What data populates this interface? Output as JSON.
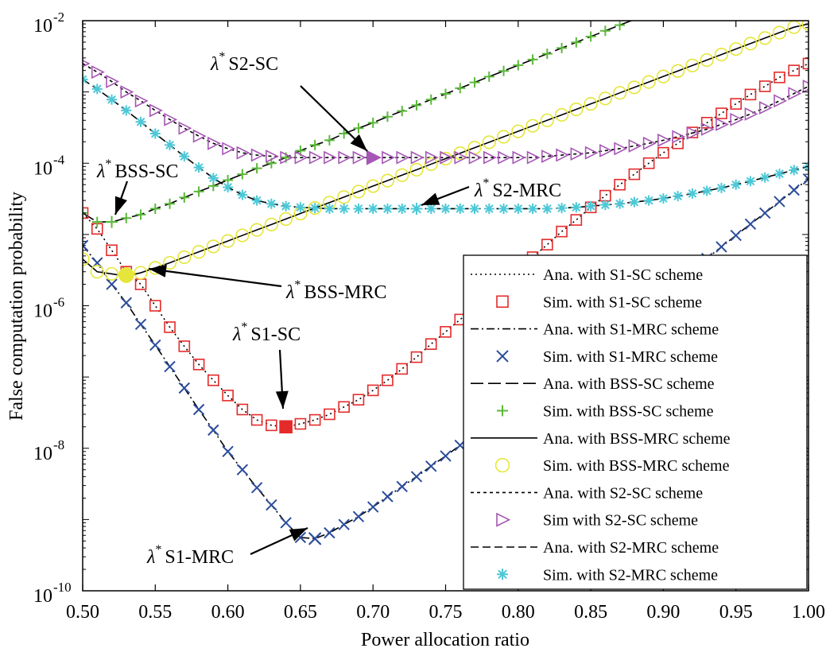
{
  "chart_data": {
    "type": "line",
    "xlabel": "Power allocation ratio",
    "ylabel": "False computation probability",
    "xlim": [
      0.5,
      1.0
    ],
    "ylim": [
      1e-10,
      0.01
    ],
    "y_scale": "log",
    "x_ticks": [
      "0.50",
      "0.55",
      "0.60",
      "0.65",
      "0.70",
      "0.75",
      "0.80",
      "0.85",
      "0.90",
      "0.95",
      "1.00"
    ],
    "y_ticks": [
      {
        "base": "10",
        "exp": "-10",
        "value": 1e-10
      },
      {
        "base": "10",
        "exp": "-8",
        "value": 1e-08
      },
      {
        "base": "10",
        "exp": "-6",
        "value": 1e-06
      },
      {
        "base": "10",
        "exp": "-4",
        "value": 0.0001
      },
      {
        "base": "10",
        "exp": "-2",
        "value": 0.01
      }
    ],
    "legend_position": "bottom-right",
    "x": [
      0.5,
      0.51,
      0.52,
      0.53,
      0.54,
      0.55,
      0.56,
      0.57,
      0.58,
      0.59,
      0.6,
      0.61,
      0.62,
      0.63,
      0.64,
      0.65,
      0.66,
      0.67,
      0.68,
      0.69,
      0.7,
      0.71,
      0.72,
      0.73,
      0.74,
      0.75,
      0.76,
      0.77,
      0.78,
      0.79,
      0.8,
      0.81,
      0.82,
      0.83,
      0.84,
      0.85,
      0.86,
      0.87,
      0.88,
      0.89,
      0.9,
      0.91,
      0.92,
      0.93,
      0.94,
      0.95,
      0.96,
      0.97,
      0.98,
      0.99,
      1.0
    ],
    "series": [
      {
        "name": "Ana. with S1-SC scheme",
        "values": [
          2e-05,
          1.2e-05,
          6e-06,
          3e-06,
          2e-06,
          1e-06,
          5e-07,
          2.7e-07,
          1.5e-07,
          9e-08,
          5.5e-08,
          3.5e-08,
          2.5e-08,
          2.1e-08,
          2e-08,
          2.2e-08,
          2.5e-08,
          3e-08,
          3.8e-08,
          4.8e-08,
          6.5e-08,
          9e-08,
          1.3e-07,
          1.9e-07,
          2.9e-07,
          4.3e-07,
          6.4e-07,
          9.5e-07,
          1.4e-06,
          2.1e-06,
          3.2e-06,
          4.8e-06,
          7.2e-06,
          1.1e-05,
          1.6e-05,
          2.4e-05,
          3.5e-05,
          5e-05,
          7e-05,
          0.0001,
          0.00014,
          0.00019,
          0.00027,
          0.00037,
          0.0005,
          0.00068,
          0.00092,
          0.0012,
          0.0016,
          0.002,
          0.0025
        ]
      },
      {
        "name": "Sim. with S1-SC scheme",
        "values": [
          2e-05,
          1.2e-05,
          6e-06,
          3e-06,
          2e-06,
          1e-06,
          5e-07,
          2.7e-07,
          1.5e-07,
          9e-08,
          5.5e-08,
          3.5e-08,
          2.5e-08,
          2.1e-08,
          2e-08,
          2.2e-08,
          2.5e-08,
          3e-08,
          3.8e-08,
          4.8e-08,
          6.5e-08,
          9e-08,
          1.3e-07,
          1.9e-07,
          2.9e-07,
          4.3e-07,
          6.4e-07,
          9.5e-07,
          1.4e-06,
          2.1e-06,
          3.2e-06,
          4.8e-06,
          7.2e-06,
          1.1e-05,
          1.6e-05,
          2.4e-05,
          3.5e-05,
          5e-05,
          7e-05,
          0.0001,
          0.00014,
          0.00019,
          0.00027,
          0.00037,
          0.0005,
          0.00068,
          0.00092,
          0.0012,
          0.0016,
          0.002,
          0.0025
        ]
      },
      {
        "name": "Ana. with S1-MRC scheme",
        "values": [
          7e-06,
          4e-06,
          2e-06,
          1.1e-06,
          5.5e-07,
          2.8e-07,
          1.4e-07,
          7e-08,
          3.5e-08,
          1.8e-08,
          9e-09,
          5e-09,
          2.8e-09,
          1.6e-09,
          9e-10,
          5.6e-10,
          5.4e-10,
          6.5e-10,
          8.5e-10,
          1.1e-09,
          1.5e-09,
          2.1e-09,
          2.9e-09,
          4e-09,
          5.6e-09,
          7.8e-09,
          1.1e-08,
          1.5e-08,
          2.1e-08,
          3e-08,
          4.2e-08,
          6e-08,
          8.5e-08,
          1.2e-07,
          1.7e-07,
          2.4e-07,
          3.5e-07,
          5e-07,
          7.1e-07,
          1e-06,
          1.5e-06,
          2.2e-06,
          3.2e-06,
          4.6e-06,
          6.7e-06,
          9.7e-06,
          1.4e-05,
          2e-05,
          2.9e-05,
          4.2e-05,
          6e-05
        ]
      },
      {
        "name": "Sim. with S1-MRC scheme",
        "values": [
          7e-06,
          4e-06,
          2e-06,
          1.1e-06,
          5.5e-07,
          2.8e-07,
          1.4e-07,
          7e-08,
          3.5e-08,
          1.8e-08,
          9e-09,
          5e-09,
          2.8e-09,
          1.6e-09,
          9e-10,
          5.6e-10,
          5.4e-10,
          6.5e-10,
          8.5e-10,
          1.1e-09,
          1.5e-09,
          2.1e-09,
          2.9e-09,
          4e-09,
          5.6e-09,
          7.8e-09,
          1.1e-08,
          1.5e-08,
          2.1e-08,
          3e-08,
          4.2e-08,
          6e-08,
          8.5e-08,
          1.2e-07,
          1.7e-07,
          2.4e-07,
          3.5e-07,
          5e-07,
          7.1e-07,
          1e-06,
          1.5e-06,
          2.2e-06,
          3.2e-06,
          4.6e-06,
          6.7e-06,
          9.7e-06,
          1.4e-05,
          2e-05,
          2.9e-05,
          4.2e-05,
          6e-05
        ]
      },
      {
        "name": "Ana. with BSS-SC scheme",
        "values": [
          2e-05,
          1.5e-05,
          1.5e-05,
          1.7e-05,
          1.9e-05,
          2.3e-05,
          2.7e-05,
          3.3e-05,
          4e-05,
          4.8e-05,
          5.8e-05,
          7e-05,
          8.5e-05,
          0.0001,
          0.00012,
          0.00015,
          0.00018,
          0.00021,
          0.00026,
          0.00031,
          0.00037,
          0.00045,
          0.00054,
          0.00065,
          0.00078,
          0.00094,
          0.00113,
          0.00136,
          0.00164,
          0.00197,
          0.00237,
          0.00285,
          0.00343,
          0.00413,
          0.00497,
          0.00598,
          0.0072,
          0.00866,
          0.0104,
          null,
          null,
          null,
          null,
          null,
          null,
          null,
          null,
          null,
          null,
          null,
          null
        ]
      },
      {
        "name": "Sim. with BSS-SC scheme",
        "values": [
          2e-05,
          1.5e-05,
          1.5e-05,
          1.7e-05,
          1.9e-05,
          2.3e-05,
          2.7e-05,
          3.3e-05,
          4e-05,
          4.8e-05,
          5.8e-05,
          7e-05,
          8.5e-05,
          0.0001,
          0.00012,
          0.00015,
          0.00018,
          0.00021,
          0.00026,
          0.00031,
          0.00037,
          0.00045,
          0.00054,
          0.00065,
          0.00078,
          0.00094,
          0.00113,
          0.00136,
          0.00164,
          0.00197,
          0.00237,
          0.00285,
          0.00343,
          0.00413,
          0.00497,
          0.00598,
          0.0072,
          0.00866,
          null,
          null,
          null,
          null,
          null,
          null,
          null,
          null,
          null,
          null,
          null,
          null,
          null
        ]
      },
      {
        "name": "Ana. with BSS-MRC scheme",
        "values": [
          4.5e-06,
          3e-06,
          2.8e-06,
          2.6e-06,
          2.9e-06,
          3.4e-06,
          4e-06,
          4.8e-06,
          5.7e-06,
          6.8e-06,
          8.1e-06,
          9.7e-06,
          1.16e-05,
          1.38e-05,
          1.65e-05,
          1.97e-05,
          2.35e-05,
          2.8e-05,
          3.35e-05,
          4e-05,
          4.77e-05,
          5.7e-05,
          6.8e-05,
          8.1e-05,
          9.7e-05,
          0.000116,
          0.000138,
          0.000165,
          0.000197,
          0.000235,
          0.00028,
          0.000335,
          0.0004,
          0.000477,
          0.00057,
          0.00068,
          0.00081,
          0.00097,
          0.00116,
          0.00138,
          0.00165,
          0.00197,
          0.00235,
          0.0028,
          0.00335,
          0.004,
          0.00477,
          0.0057,
          0.0068,
          0.0081,
          0.009
        ]
      },
      {
        "name": "Sim. with BSS-MRC scheme",
        "values": [
          4.5e-06,
          3e-06,
          2.8e-06,
          2.6e-06,
          2.9e-06,
          3.4e-06,
          4e-06,
          4.8e-06,
          5.7e-06,
          6.8e-06,
          8.1e-06,
          9.7e-06,
          1.16e-05,
          1.38e-05,
          1.65e-05,
          1.97e-05,
          2.35e-05,
          2.8e-05,
          3.35e-05,
          4e-05,
          4.77e-05,
          5.7e-05,
          6.8e-05,
          8.1e-05,
          9.7e-05,
          0.000116,
          0.000138,
          0.000165,
          0.000197,
          0.000235,
          0.00028,
          0.000335,
          0.0004,
          0.000477,
          0.00057,
          0.00068,
          0.00081,
          0.00097,
          0.00116,
          0.00138,
          0.00165,
          0.00197,
          0.00235,
          0.0028,
          0.00335,
          0.004,
          0.00477,
          0.0057,
          0.0068,
          0.0081,
          0.009
        ]
      },
      {
        "name": "Ana. with S2-SC scheme",
        "values": [
          0.0025,
          0.0019,
          0.0014,
          0.001,
          0.00075,
          0.00055,
          0.00041,
          0.00031,
          0.00024,
          0.00019,
          0.00016,
          0.00014,
          0.00013,
          0.000125,
          0.00012,
          0.00012,
          0.00012,
          0.00012,
          0.00012,
          0.00012,
          0.00012,
          0.00012,
          0.00012,
          0.00012,
          0.00012,
          0.00012,
          0.00012,
          0.00012,
          0.00012,
          0.00012,
          0.00012,
          0.00012,
          0.000125,
          0.00013,
          0.000135,
          0.00014,
          0.00015,
          0.00016,
          0.000175,
          0.00019,
          0.00021,
          0.000235,
          0.000265,
          0.0003,
          0.00035,
          0.00041,
          0.00049,
          0.0006,
          0.00075,
          0.00095,
          0.0012
        ]
      },
      {
        "name": "Sim with S2-SC scheme",
        "values": [
          0.0025,
          0.0019,
          0.0014,
          0.001,
          0.00075,
          0.00055,
          0.00041,
          0.00031,
          0.00024,
          0.00019,
          0.00016,
          0.00014,
          0.00013,
          0.000125,
          0.00012,
          0.00012,
          0.00012,
          0.00012,
          0.00012,
          0.00012,
          0.00012,
          0.00012,
          0.00012,
          0.00012,
          0.00012,
          0.00012,
          0.00012,
          0.00012,
          0.00012,
          0.00012,
          0.00012,
          0.00012,
          0.000125,
          0.00013,
          0.000135,
          0.00014,
          0.00015,
          0.00016,
          0.000175,
          0.00019,
          0.00021,
          0.000235,
          0.000265,
          0.0003,
          0.00035,
          0.00041,
          0.00049,
          0.0006,
          0.00075,
          0.00095,
          0.0012
        ]
      },
      {
        "name": "Ana. with S2-MRC scheme",
        "values": [
          0.0015,
          0.0011,
          0.00078,
          0.00055,
          0.00038,
          0.00026,
          0.00018,
          0.000125,
          8.7e-05,
          6.2e-05,
          4.6e-05,
          3.6e-05,
          3e-05,
          2.7e-05,
          2.5e-05,
          2.4e-05,
          2.35e-05,
          2.3e-05,
          2.3e-05,
          2.3e-05,
          2.3e-05,
          2.3e-05,
          2.3e-05,
          2.3e-05,
          2.3e-05,
          2.3e-05,
          2.3e-05,
          2.3e-05,
          2.3e-05,
          2.3e-05,
          2.3e-05,
          2.3e-05,
          2.3e-05,
          2.35e-05,
          2.4e-05,
          2.5e-05,
          2.6e-05,
          2.7e-05,
          2.85e-05,
          3e-05,
          3.2e-05,
          3.45e-05,
          3.75e-05,
          4.1e-05,
          4.5e-05,
          5e-05,
          5.6e-05,
          6.3e-05,
          7.1e-05,
          8e-05,
          9e-05
        ]
      },
      {
        "name": "Sim. with S2-MRC scheme",
        "values": [
          0.0015,
          0.0011,
          0.00078,
          0.00055,
          0.00038,
          0.00026,
          0.00018,
          0.000125,
          8.7e-05,
          6.2e-05,
          4.6e-05,
          3.6e-05,
          3e-05,
          2.7e-05,
          2.5e-05,
          2.4e-05,
          2.35e-05,
          2.3e-05,
          2.3e-05,
          2.3e-05,
          2.3e-05,
          2.3e-05,
          2.3e-05,
          2.3e-05,
          2.3e-05,
          2.3e-05,
          2.3e-05,
          2.3e-05,
          2.3e-05,
          2.3e-05,
          2.3e-05,
          2.3e-05,
          2.3e-05,
          2.35e-05,
          2.4e-05,
          2.5e-05,
          2.6e-05,
          2.7e-05,
          2.85e-05,
          3e-05,
          3.2e-05,
          3.45e-05,
          3.75e-05,
          4.1e-05,
          4.5e-05,
          5e-05,
          5.6e-05,
          6.3e-05,
          7.1e-05,
          8e-05,
          9e-05
        ]
      }
    ],
    "styles": [
      {
        "line": "dotted",
        "color": "#000000"
      },
      {
        "marker": "square",
        "color": "#e52a2a"
      },
      {
        "line": "dashdot",
        "color": "#000000"
      },
      {
        "marker": "x",
        "color": "#2c4d9b"
      },
      {
        "line": "longdash",
        "color": "#000000"
      },
      {
        "marker": "plus",
        "color": "#5bb93a"
      },
      {
        "line": "solid",
        "color": "#000000"
      },
      {
        "marker": "circle",
        "color": "#e6e63a"
      },
      {
        "line": "shortdash",
        "color": "#000000"
      },
      {
        "marker": "triangle",
        "color": "#a657b4"
      },
      {
        "line": "medash",
        "color": "#000000"
      },
      {
        "marker": "star",
        "color": "#4dc8d6"
      }
    ],
    "annotations": [
      {
        "label": "S2-SC",
        "point": [
          0.7,
          0.00012
        ],
        "marker_color": "#a657b4",
        "marker": "triangle"
      },
      {
        "label": "BSS-SC",
        "point": [
          0.52,
          1.5e-05
        ],
        "marker_color": "#5bb93a",
        "marker": "plus"
      },
      {
        "label": "S2-MRC",
        "point": [
          0.73,
          2.3e-05
        ],
        "marker_color": "#4dc8d6",
        "marker": "star"
      },
      {
        "label": "BSS-MRC",
        "point": [
          0.53,
          2.7e-06
        ],
        "marker_color": "#e6e63a",
        "marker": "circle"
      },
      {
        "label": "S1-SC",
        "point": [
          0.64,
          2e-08
        ],
        "marker_color": "#e52a2a",
        "marker": "square"
      },
      {
        "label": "S1-MRC",
        "point": [
          0.66,
          5.4e-10
        ],
        "marker_color": "#2c4d9b",
        "marker": "x"
      }
    ],
    "annotation_symbol": "λ",
    "annotation_sup": "*"
  }
}
